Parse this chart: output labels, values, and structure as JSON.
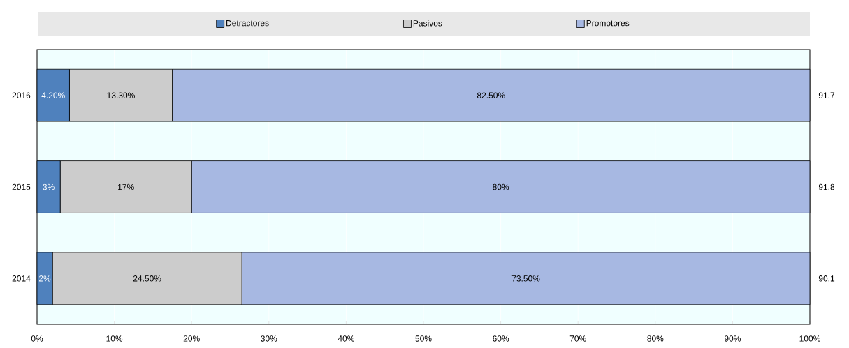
{
  "chart_data": {
    "type": "bar",
    "orientation": "horizontal",
    "stacked": true,
    "categories": [
      "2016",
      "2015",
      "2014"
    ],
    "series": [
      {
        "name": "Detractores",
        "color": "#4f81bd",
        "values": [
          4.2,
          3,
          2
        ],
        "value_labels": [
          "4.20%",
          "3%",
          "2%"
        ]
      },
      {
        "name": "Pasivos",
        "color": "#cccccc",
        "values": [
          13.3,
          17,
          24.5
        ],
        "value_labels": [
          "13.30%",
          "17%",
          "24.50%"
        ]
      },
      {
        "name": "Promotores",
        "color": "#a7b8e2",
        "values": [
          82.5,
          80,
          73.5
        ],
        "value_labels": [
          "82.50%",
          "80%",
          "73.50%"
        ]
      }
    ],
    "xlim": [
      0,
      100
    ],
    "xticks": [
      {
        "value": 0,
        "label": "0%"
      },
      {
        "value": 10,
        "label": "10%"
      },
      {
        "value": 20,
        "label": "20%"
      },
      {
        "value": 30,
        "label": "30%"
      },
      {
        "value": 40,
        "label": "40%"
      },
      {
        "value": 50,
        "label": "50%"
      },
      {
        "value": 60,
        "label": "60%"
      },
      {
        "value": 70,
        "label": "70%"
      },
      {
        "value": 80,
        "label": "80%"
      },
      {
        "value": 90,
        "label": "90%"
      },
      {
        "value": 100,
        "label": "100%"
      }
    ],
    "annotations": [
      "91.7",
      "91.8",
      "90.1"
    ],
    "grid": "x",
    "legend": "top"
  }
}
